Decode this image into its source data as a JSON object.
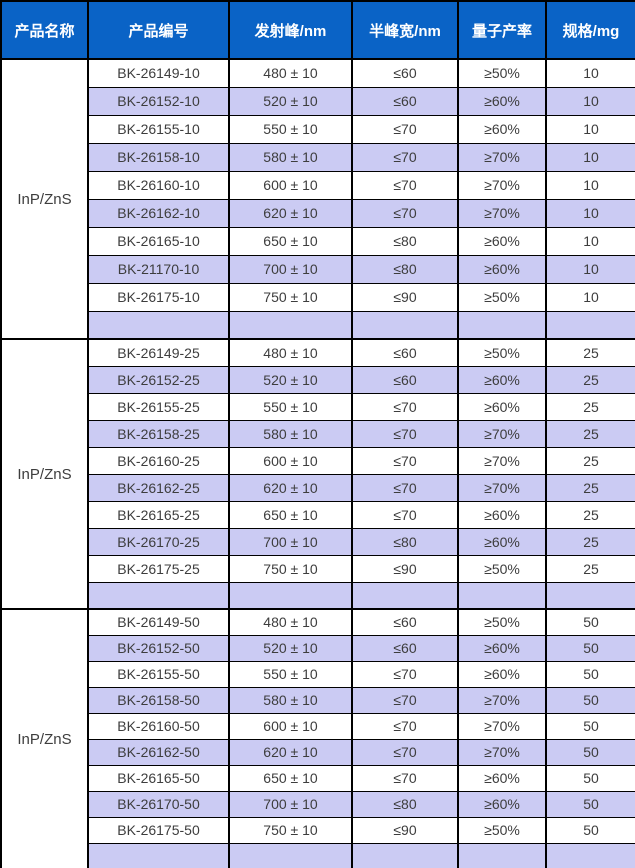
{
  "table": {
    "headers": [
      "产品名称",
      "产品编号",
      "发射峰/nm",
      "半峰宽/nm",
      "量子产率",
      "规格/mg"
    ],
    "groups": [
      {
        "product_name": "InP/ZnS",
        "rows": [
          [
            "BK-26149-10",
            "480 ± 10",
            "≤60",
            "≥50%",
            "10"
          ],
          [
            "BK-26152-10",
            "520 ± 10",
            "≤60",
            "≥60%",
            "10"
          ],
          [
            "BK-26155-10",
            "550 ± 10",
            "≤70",
            "≥60%",
            "10"
          ],
          [
            "BK-26158-10",
            "580 ± 10",
            "≤70",
            "≥70%",
            "10"
          ],
          [
            "BK-26160-10",
            "600 ± 10",
            "≤70",
            "≥70%",
            "10"
          ],
          [
            "BK-26162-10",
            "620 ± 10",
            "≤70",
            "≥70%",
            "10"
          ],
          [
            "BK-26165-10",
            "650 ± 10",
            "≤80",
            "≥60%",
            "10"
          ],
          [
            "BK-21170-10",
            "700 ± 10",
            "≤80",
            "≥60%",
            "10"
          ],
          [
            "BK-26175-10",
            "750 ± 10",
            "≤90",
            "≥50%",
            "10"
          ]
        ]
      },
      {
        "product_name": "InP/ZnS",
        "rows": [
          [
            "BK-26149-25",
            "480 ± 10",
            "≤60",
            "≥50%",
            "25"
          ],
          [
            "BK-26152-25",
            "520 ± 10",
            "≤60",
            "≥60%",
            "25"
          ],
          [
            "BK-26155-25",
            "550 ± 10",
            "≤70",
            "≥60%",
            "25"
          ],
          [
            "BK-26158-25",
            "580 ± 10",
            "≤70",
            "≥70%",
            "25"
          ],
          [
            "BK-26160-25",
            "600 ± 10",
            "≤70",
            "≥70%",
            "25"
          ],
          [
            "BK-26162-25",
            "620 ± 10",
            "≤70",
            "≥70%",
            "25"
          ],
          [
            "BK-26165-25",
            "650 ± 10",
            "≤70",
            "≥60%",
            "25"
          ],
          [
            "BK-26170-25",
            "700 ± 10",
            "≤80",
            "≥60%",
            "25"
          ],
          [
            "BK-26175-25",
            "750 ± 10",
            "≤90",
            "≥50%",
            "25"
          ]
        ]
      },
      {
        "product_name": "InP/ZnS",
        "rows": [
          [
            "BK-26149-50",
            "480 ± 10",
            "≤60",
            "≥50%",
            "50"
          ],
          [
            "BK-26152-50",
            "520 ± 10",
            "≤60",
            "≥60%",
            "50"
          ],
          [
            "BK-26155-50",
            "550 ± 10",
            "≤70",
            "≥60%",
            "50"
          ],
          [
            "BK-26158-50",
            "580 ± 10",
            "≤70",
            "≥70%",
            "50"
          ],
          [
            "BK-26160-50",
            "600 ± 10",
            "≤70",
            "≥70%",
            "50"
          ],
          [
            "BK-26162-50",
            "620 ± 10",
            "≤70",
            "≥70%",
            "50"
          ],
          [
            "BK-26165-50",
            "650 ± 10",
            "≤70",
            "≥60%",
            "50"
          ],
          [
            "BK-26170-50",
            "700 ± 10",
            "≤80",
            "≥60%",
            "50"
          ],
          [
            "BK-26175-50",
            "750 ± 10",
            "≤90",
            "≥50%",
            "50"
          ]
        ]
      }
    ]
  },
  "colors": {
    "header_bg": "#0a63c6",
    "header_text": "#ffffff",
    "stripe_bg": "#cbcbf3",
    "body_text": "#3d3d3d",
    "border": "#000000"
  }
}
